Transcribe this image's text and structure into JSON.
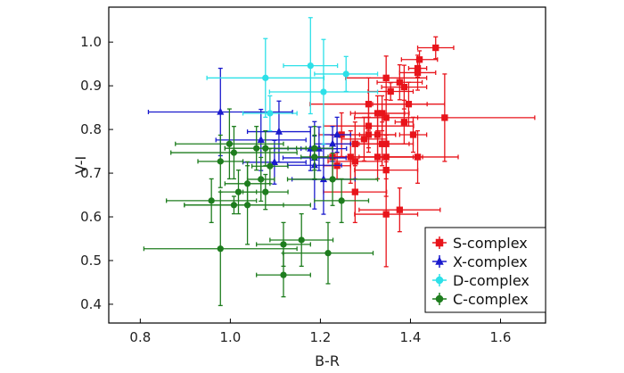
{
  "chart_data": {
    "type": "scatter",
    "title": "",
    "xlabel": "B-R",
    "ylabel": "V-I",
    "xlim": [
      0.73,
      1.7
    ],
    "ylim": [
      0.357,
      1.08
    ],
    "xticks": [
      "0.8",
      "1.0",
      "1.2",
      "1.4",
      "1.6"
    ],
    "yticks": [
      "0.4",
      "0.5",
      "0.6",
      "0.7",
      "0.8",
      "0.9",
      "1.0"
    ],
    "grid": false,
    "legend_position": "bottom-right",
    "point_format": "[x, y, x_error, y_error]",
    "series": [
      {
        "name": "S-complex",
        "color": "#e8141b",
        "marker": "square",
        "points": [
          [
            1.456,
            0.987,
            0.04,
            0.025
          ],
          [
            1.42,
            0.96,
            0.04,
            0.02
          ],
          [
            1.416,
            0.94,
            0.02,
            0.02
          ],
          [
            1.416,
            0.93,
            0.04,
            0.04
          ],
          [
            1.346,
            0.918,
            0.09,
            0.05
          ],
          [
            1.376,
            0.908,
            0.05,
            0.04
          ],
          [
            1.386,
            0.897,
            0.05,
            0.05
          ],
          [
            1.356,
            0.887,
            0.05,
            0.02
          ],
          [
            1.307,
            0.858,
            0.13,
            0.06
          ],
          [
            1.396,
            0.858,
            0.08,
            0.05
          ],
          [
            1.476,
            0.827,
            0.2,
            0.1
          ],
          [
            1.327,
            0.837,
            0.06,
            0.04
          ],
          [
            1.337,
            0.837,
            0.06,
            0.04
          ],
          [
            1.346,
            0.827,
            0.07,
            0.06
          ],
          [
            1.386,
            0.817,
            0.02,
            0.05
          ],
          [
            1.307,
            0.808,
            0.1,
            0.05
          ],
          [
            1.247,
            0.788,
            0.05,
            0.05
          ],
          [
            1.307,
            0.788,
            0.06,
            0.04
          ],
          [
            1.327,
            0.788,
            0.04,
            0.05
          ],
          [
            1.406,
            0.788,
            0.03,
            0.04
          ],
          [
            1.297,
            0.778,
            0.05,
            0.05
          ],
          [
            1.277,
            0.767,
            0.05,
            0.05
          ],
          [
            1.337,
            0.767,
            0.06,
            0.05
          ],
          [
            1.346,
            0.767,
            0.06,
            0.06
          ],
          [
            1.227,
            0.737,
            0.05,
            0.05
          ],
          [
            1.267,
            0.737,
            0.08,
            0.06
          ],
          [
            1.327,
            0.737,
            0.1,
            0.05
          ],
          [
            1.346,
            0.737,
            0.06,
            0.05
          ],
          [
            1.416,
            0.737,
            0.09,
            0.06
          ],
          [
            1.237,
            0.717,
            0.03,
            0.03
          ],
          [
            1.277,
            0.727,
            0.06,
            0.04
          ],
          [
            1.346,
            0.707,
            0.07,
            0.06
          ],
          [
            1.277,
            0.657,
            0.07,
            0.07
          ],
          [
            1.376,
            0.616,
            0.09,
            0.05
          ],
          [
            1.346,
            0.606,
            0.07,
            0.12
          ]
        ]
      },
      {
        "name": "X-complex",
        "color": "#1a1acd",
        "marker": "triangle",
        "points": [
          [
            0.978,
            0.84,
            0.16,
            0.1
          ],
          [
            1.108,
            0.795,
            0.07,
            0.07
          ],
          [
            1.068,
            0.776,
            0.1,
            0.07
          ],
          [
            1.178,
            0.756,
            0.08,
            0.05
          ],
          [
            1.197,
            0.756,
            0.04,
            0.05
          ],
          [
            1.187,
            0.735,
            0.07,
            0.05
          ],
          [
            1.098,
            0.725,
            0.07,
            0.05
          ],
          [
            1.187,
            0.718,
            0.06,
            0.1
          ],
          [
            1.207,
            0.686,
            0.07,
            0.08
          ],
          [
            1.227,
            0.767,
            0.04,
            0.04
          ],
          [
            1.237,
            0.788,
            0.03,
            0.04
          ]
        ]
      },
      {
        "name": "D-complex",
        "color": "#2de0e8",
        "marker": "circle",
        "points": [
          [
            1.078,
            0.918,
            0.13,
            0.09
          ],
          [
            1.178,
            0.946,
            0.06,
            0.11
          ],
          [
            1.207,
            0.886,
            0.12,
            0.12
          ],
          [
            1.088,
            0.837,
            0.06,
            0.04
          ],
          [
            1.257,
            0.927,
            0.07,
            0.04
          ]
        ]
      },
      {
        "name": "C-complex",
        "color": "#1e7d1e",
        "marker": "circle",
        "points": [
          [
            0.998,
            0.767,
            0.12,
            0.08
          ],
          [
            1.008,
            0.747,
            0.14,
            0.06
          ],
          [
            1.058,
            0.757,
            0.07,
            0.05
          ],
          [
            1.078,
            0.757,
            0.09,
            0.04
          ],
          [
            0.978,
            0.727,
            0.05,
            0.06
          ],
          [
            1.187,
            0.757,
            0.04,
            0.05
          ],
          [
            1.187,
            0.737,
            0.03,
            0.05
          ],
          [
            1.088,
            0.716,
            0.04,
            0.04
          ],
          [
            1.068,
            0.686,
            0.03,
            0.05
          ],
          [
            1.038,
            0.676,
            0.05,
            0.05
          ],
          [
            1.018,
            0.657,
            0.04,
            0.05
          ],
          [
            1.078,
            0.657,
            0.05,
            0.04
          ],
          [
            0.958,
            0.637,
            0.1,
            0.05
          ],
          [
            1.008,
            0.627,
            0.11,
            0.02
          ],
          [
            1.038,
            0.627,
            0.14,
            0.09
          ],
          [
            0.978,
            0.527,
            0.17,
            0.13
          ],
          [
            1.118,
            0.537,
            0.06,
            0.05
          ],
          [
            1.158,
            0.547,
            0.07,
            0.06
          ],
          [
            1.217,
            0.517,
            0.1,
            0.07
          ],
          [
            1.118,
            0.467,
            0.06,
            0.05
          ],
          [
            1.227,
            0.686,
            0.1,
            0.06
          ],
          [
            1.247,
            0.637,
            0.06,
            0.05
          ]
        ]
      }
    ]
  }
}
